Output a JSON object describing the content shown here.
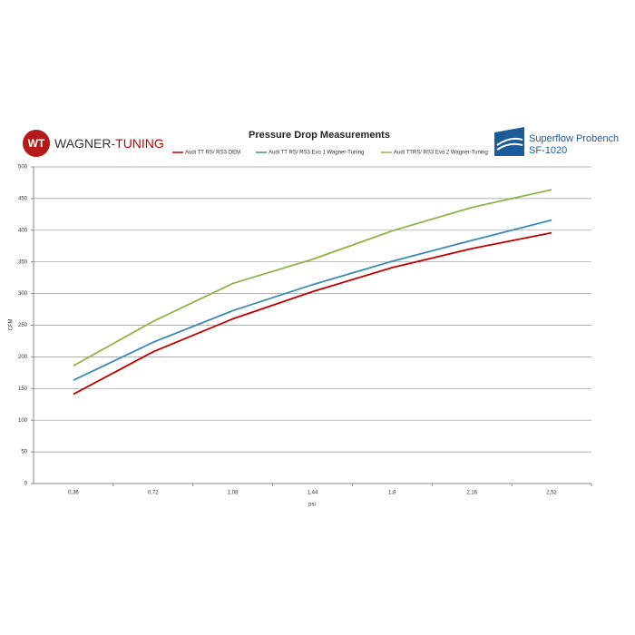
{
  "chart_data": {
    "type": "line",
    "title": "Pressure Drop Measurements",
    "x_label": "psi",
    "y_label": "CFM",
    "categories": [
      "0,36",
      "0,72",
      "1,08",
      "1,44",
      "1,8",
      "2,16",
      "2,52"
    ],
    "series": [
      {
        "name": "Audi TT RS/ RS3  OEM",
        "color": "#c00000",
        "values": [
          141,
          208,
          260,
          303,
          341,
          371,
          396
        ]
      },
      {
        "name": "Audi TT RS/ RS3 Evo 1 Wagner-Tuning",
        "color": "#3a8bb0",
        "values": [
          163,
          223,
          273,
          314,
          351,
          384,
          416
        ]
      },
      {
        "name": "Audi TTRS/ RS3 Evo 2 Wagner-Tuning",
        "color": "#8db54a",
        "values": [
          186,
          256,
          316,
          354,
          399,
          436,
          464
        ]
      }
    ],
    "ylim": [
      0,
      500
    ],
    "yticks": [
      0,
      50,
      100,
      150,
      200,
      250,
      300,
      350,
      400,
      450,
      500
    ],
    "grid": true,
    "legend": "top"
  },
  "logos": {
    "left_mark": "WT",
    "left_name": "WAGNER",
    "left_suffix": "-TUNING",
    "right_name": "Superflow Probench",
    "right_model": "SF-1020"
  }
}
